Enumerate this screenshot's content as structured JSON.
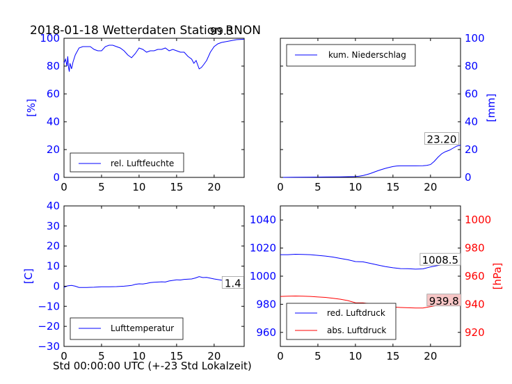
{
  "title": "2018-01-18 Wetterdaten Station RNON",
  "xlabel": "Std 00:00:00 UTC (+-23 Std Lokalzeit)",
  "colors": {
    "blue": "#0000ff",
    "red": "#ff0000",
    "annot_bg_red": "#f7c6c6"
  },
  "chart_data": [
    {
      "id": "humidity",
      "type": "line",
      "xlim": [
        0,
        24
      ],
      "ylim": [
        0,
        100
      ],
      "x_ticks": [
        0,
        5,
        10,
        15,
        20
      ],
      "y_ticks": [
        0,
        20,
        40,
        60,
        80,
        100
      ],
      "ylabel": "[%]",
      "axis_side": "left",
      "annotation": {
        "x": 21,
        "y": 99.3,
        "text": "99.3"
      },
      "legend": {
        "placement": "lower-left",
        "entries": [
          "rel. Luftfeuchte"
        ]
      },
      "series": [
        {
          "name": "rel. Luftfeuchte",
          "color": "#0000ff",
          "x": [
            0,
            0.2,
            0.4,
            0.5,
            0.6,
            0.7,
            0.8,
            1.0,
            1.2,
            1.5,
            2.0,
            2.5,
            3.0,
            3.5,
            4.0,
            4.5,
            5.0,
            5.5,
            6.0,
            6.5,
            7.0,
            7.5,
            8.0,
            8.5,
            9.0,
            9.5,
            10.0,
            10.5,
            11.0,
            11.5,
            12.0,
            12.5,
            13.0,
            13.5,
            14.0,
            14.5,
            15.0,
            15.5,
            16.0,
            16.5,
            17.0,
            17.3,
            17.6,
            17.8,
            18.0,
            18.3,
            18.6,
            19.0,
            19.5,
            20.0,
            20.5,
            21.0,
            22.0,
            23.0,
            24.0
          ],
          "y": [
            82,
            85,
            80,
            87,
            79,
            76,
            82,
            78,
            83,
            88,
            93,
            94,
            94,
            94,
            92,
            91,
            91,
            94,
            95,
            95,
            94,
            93,
            91,
            88,
            86,
            89,
            93,
            92,
            90,
            91,
            91,
            92,
            92,
            93,
            91,
            92,
            91,
            90,
            90,
            87,
            85,
            82,
            84,
            81,
            78,
            79,
            81,
            84,
            90,
            94,
            96,
            97,
            98,
            99,
            99.3
          ]
        }
      ]
    },
    {
      "id": "precipitation",
      "type": "line",
      "xlim": [
        0,
        24
      ],
      "ylim": [
        0,
        100
      ],
      "x_ticks": [
        0,
        5,
        10,
        15,
        20
      ],
      "y_ticks": [
        0,
        20,
        40,
        60,
        80,
        100
      ],
      "ylabel": "[mm]",
      "axis_side": "right",
      "annotation": {
        "x": 21.5,
        "y": 23.2,
        "text": "23.20"
      },
      "legend": {
        "placement": "upper-left",
        "entries": [
          "kum. Niederschlag"
        ]
      },
      "series": [
        {
          "name": "kum. Niederschlag",
          "color": "#0000ff",
          "x": [
            0,
            2,
            4,
            6,
            8,
            9,
            10,
            10.5,
            11,
            11.5,
            12,
            12.5,
            13,
            13.5,
            14,
            14.5,
            15,
            15.5,
            16,
            17,
            18,
            19,
            19.5,
            20,
            20.5,
            21,
            21.5,
            22,
            22.5,
            23,
            23.5,
            24
          ],
          "y": [
            0,
            0.1,
            0.2,
            0.3,
            0.4,
            0.5,
            0.6,
            0.9,
            1.3,
            2.0,
            2.8,
            3.8,
            4.8,
            5.7,
            6.5,
            7.2,
            7.8,
            8.2,
            8.3,
            8.3,
            8.3,
            8.4,
            8.6,
            9.2,
            11.5,
            14.5,
            17,
            18.5,
            19.5,
            21,
            22.5,
            23.2
          ]
        }
      ]
    },
    {
      "id": "temperature",
      "type": "line",
      "xlim": [
        0,
        24
      ],
      "ylim": [
        -30,
        40
      ],
      "x_ticks": [
        0,
        5,
        10,
        15,
        20
      ],
      "y_ticks": [
        -30,
        -20,
        -10,
        0,
        10,
        20,
        30,
        40
      ],
      "ylabel": "[C]",
      "axis_side": "left",
      "annotation": {
        "x": 22.5,
        "y": 1.4,
        "text": "1.4"
      },
      "legend": {
        "placement": "lower-left",
        "entries": [
          "Lufttemperatur"
        ]
      },
      "series": [
        {
          "name": "Lufttemperatur",
          "color": "#0000ff",
          "x": [
            0,
            0.5,
            1,
            1.5,
            2,
            3,
            4,
            5,
            6,
            7,
            8,
            8.5,
            9,
            9.5,
            10,
            10.5,
            11,
            11.5,
            12,
            13,
            13.5,
            14,
            15,
            15.5,
            16,
            17,
            17.5,
            18,
            18.5,
            19,
            20,
            21,
            22,
            23,
            24
          ],
          "y": [
            -0.5,
            0.2,
            0.4,
            0,
            -0.6,
            -0.6,
            -0.5,
            -0.3,
            -0.3,
            -0.2,
            0,
            0.2,
            0.4,
            0.9,
            1.2,
            1.1,
            1.4,
            1.8,
            2.0,
            2.2,
            2.1,
            2.6,
            3.2,
            3.1,
            3.4,
            3.6,
            4.1,
            4.8,
            4.3,
            4.4,
            3.6,
            3.0,
            2.6,
            2.0,
            1.4
          ]
        }
      ]
    },
    {
      "id": "pressure",
      "type": "line",
      "xlim": [
        0,
        24
      ],
      "ylim_left": [
        950,
        1050
      ],
      "ylim_right": [
        910,
        1010
      ],
      "x_ticks": [
        0,
        5,
        10,
        15,
        20
      ],
      "y_ticks_left": [
        960,
        980,
        1000,
        1020,
        1040
      ],
      "y_ticks_right": [
        920,
        940,
        960,
        980,
        1000
      ],
      "ylabel_right": "[hPa]",
      "annotations": [
        {
          "axis": "left",
          "x": 21.3,
          "y": 1008.5,
          "text": "1008.5"
        },
        {
          "axis": "right",
          "x": 21.8,
          "y": 939.8,
          "text": "939.8"
        }
      ],
      "legend": {
        "placement": "lower-left",
        "entries": [
          "red. Luftdruck",
          "abs. Luftdruck"
        ]
      },
      "series": [
        {
          "name": "red. Luftdruck",
          "color": "#0000ff",
          "axis": "left",
          "x": [
            0,
            1,
            2,
            3,
            4,
            5,
            6,
            7,
            8,
            9,
            10,
            11,
            12,
            13,
            14,
            15,
            16,
            17,
            18,
            19,
            20,
            21,
            22,
            23,
            24
          ],
          "y": [
            1015.3,
            1015.3,
            1015.6,
            1015.5,
            1015.3,
            1014.8,
            1014.3,
            1013.6,
            1012.6,
            1011.7,
            1010.4,
            1010.2,
            1009.1,
            1007.9,
            1006.8,
            1006.0,
            1005.4,
            1005.3,
            1005.0,
            1005.2,
            1006.6,
            1007.6,
            1008.4,
            1008.7,
            1008.5
          ]
        },
        {
          "name": "abs. Luftdruck",
          "color": "#ff0000",
          "axis": "right",
          "x": [
            0,
            1,
            2,
            3,
            4,
            5,
            6,
            7,
            8,
            9,
            10,
            11,
            12,
            13,
            14,
            15,
            16,
            17,
            18,
            19,
            20,
            21,
            22,
            23,
            24
          ],
          "y": [
            945.6,
            945.8,
            945.9,
            945.8,
            945.6,
            945.2,
            944.9,
            944.3,
            943.6,
            942.6,
            941.1,
            941.0,
            940.3,
            939.3,
            938.5,
            938.0,
            937.7,
            937.5,
            937.4,
            937.4,
            938.3,
            939.3,
            939.8,
            940.0,
            939.8
          ]
        }
      ]
    }
  ]
}
